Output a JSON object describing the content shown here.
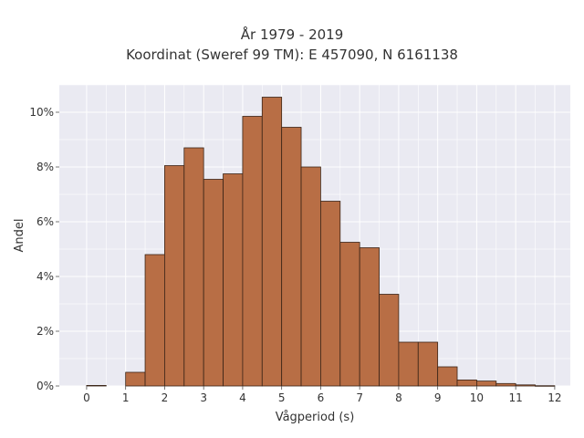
{
  "chart_data": {
    "type": "bar",
    "title": "År 1979 - 2019",
    "subtitle": "Koordinat (Sweref 99 TM): E 457090, N 6161138",
    "xlabel": "Vågperiod (s)",
    "ylabel": "Andel",
    "xlim": [
      -0.7,
      12.4
    ],
    "ylim": [
      0,
      11
    ],
    "x_ticks": [
      0,
      1,
      2,
      3,
      4,
      5,
      6,
      7,
      8,
      9,
      10,
      11,
      12
    ],
    "y_ticks": [
      {
        "value": 0,
        "label": "0%"
      },
      {
        "value": 2,
        "label": "2%"
      },
      {
        "value": 4,
        "label": "4%"
      },
      {
        "value": 6,
        "label": "6%"
      },
      {
        "value": 8,
        "label": "8%"
      },
      {
        "value": 10,
        "label": "10%"
      }
    ],
    "bin_width": 0.5,
    "bins": [
      {
        "start": 0.0,
        "value": 0.02
      },
      {
        "start": 1.0,
        "value": 0.5
      },
      {
        "start": 1.5,
        "value": 4.8
      },
      {
        "start": 2.0,
        "value": 8.05
      },
      {
        "start": 2.5,
        "value": 8.7
      },
      {
        "start": 3.0,
        "value": 7.55
      },
      {
        "start": 3.5,
        "value": 7.75
      },
      {
        "start": 4.0,
        "value": 9.85
      },
      {
        "start": 4.5,
        "value": 10.55
      },
      {
        "start": 5.0,
        "value": 9.45
      },
      {
        "start": 5.5,
        "value": 8.0
      },
      {
        "start": 6.0,
        "value": 6.75
      },
      {
        "start": 6.5,
        "value": 5.25
      },
      {
        "start": 7.0,
        "value": 5.05
      },
      {
        "start": 7.5,
        "value": 3.35
      },
      {
        "start": 8.0,
        "value": 1.6
      },
      {
        "start": 8.5,
        "value": 1.6
      },
      {
        "start": 9.0,
        "value": 0.7
      },
      {
        "start": 9.5,
        "value": 0.22
      },
      {
        "start": 10.0,
        "value": 0.18
      },
      {
        "start": 10.5,
        "value": 0.09
      },
      {
        "start": 11.0,
        "value": 0.04
      },
      {
        "start": 11.5,
        "value": 0.01
      }
    ],
    "grid": true,
    "colors": {
      "bar_fill": "#b86e45",
      "bar_edge": "#3a2417",
      "plot_background": "#eaeaf2",
      "grid": "#ffffff"
    }
  }
}
